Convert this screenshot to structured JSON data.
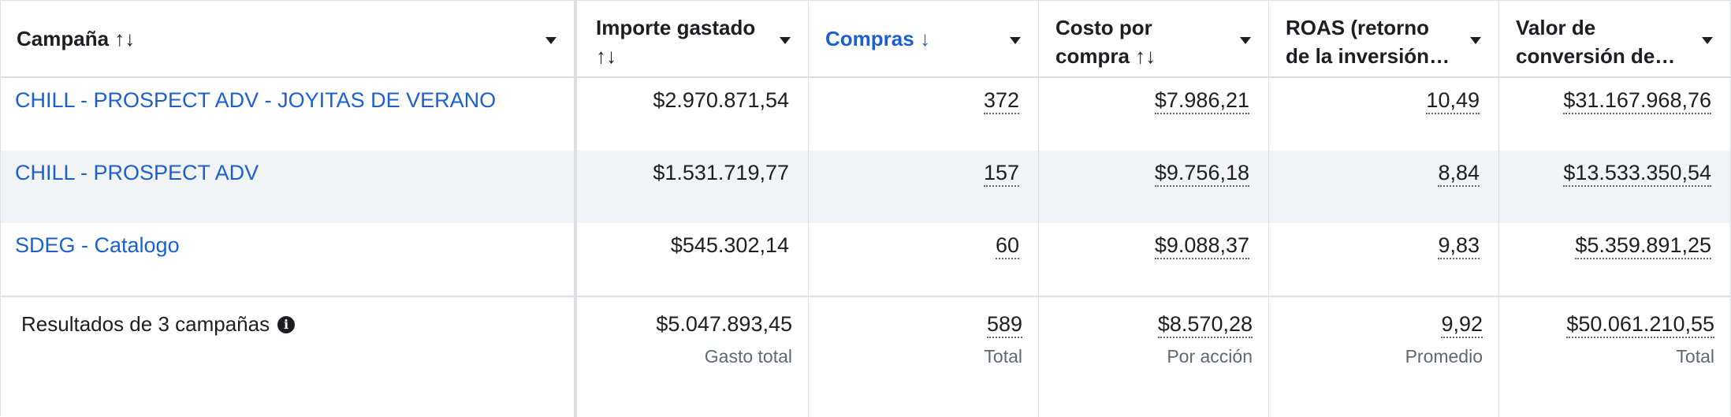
{
  "columns": [
    {
      "label": "Campaña",
      "sort": "↑↓"
    },
    {
      "label": "Importe gastado",
      "sort": "↑↓"
    },
    {
      "label": "Compras",
      "sort": "↓"
    },
    {
      "label": "Costo por compra",
      "sort": "↑↓"
    },
    {
      "label": "ROAS (retorno de la inversión…"
    },
    {
      "label": "Valor de conversión de…"
    }
  ],
  "rows": [
    {
      "campaign": "CHILL - PROSPECT ADV - JOYITAS DE VERANO",
      "spent": "$2.970.871,54",
      "purchases": "372",
      "cost": "$7.986,21",
      "roas": "10,49",
      "value": "$31.167.968,76"
    },
    {
      "campaign": "CHILL - PROSPECT ADV",
      "spent": "$1.531.719,77",
      "purchases": "157",
      "cost": "$9.756,18",
      "roas": "8,84",
      "value": "$13.533.350,54"
    },
    {
      "campaign": "SDEG - Catalogo",
      "spent": "$545.302,14",
      "purchases": "60",
      "cost": "$9.088,37",
      "roas": "9,83",
      "value": "$5.359.891,25"
    }
  ],
  "summary": {
    "label": "Resultados de 3 campañas",
    "spent": "$5.047.893,45",
    "spent_sub": "Gasto total",
    "purchases": "589",
    "purchases_sub": "Total",
    "cost": "$8.570,28",
    "cost_sub": "Por acción",
    "roas": "9,92",
    "roas_sub": "Promedio",
    "value": "$50.061.210,55",
    "value_sub": "Total"
  },
  "colors": {
    "link": "#1b5fd1",
    "zebra": "#f2f3f5",
    "border": "#dadde1"
  }
}
